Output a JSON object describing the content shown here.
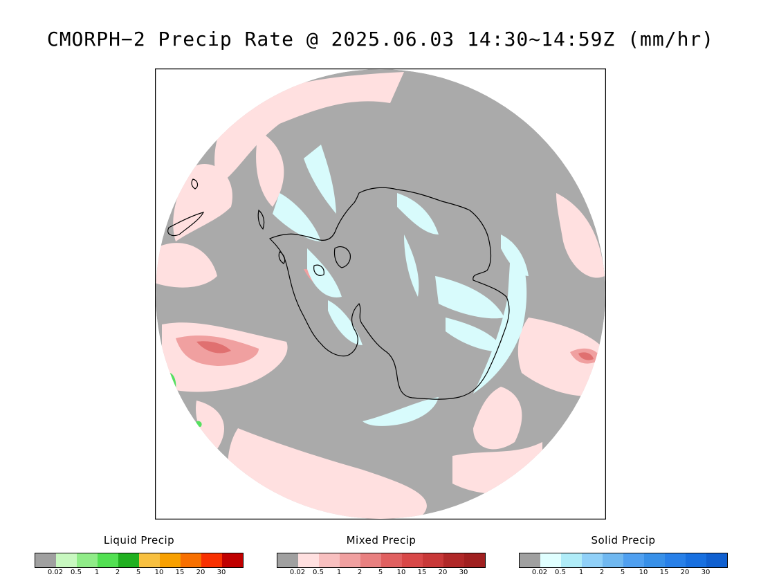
{
  "title": "CMORPH−2 Precip Rate @ 2025.06.03 14:30~14:59Z (mm/hr)",
  "map": {
    "projection": "south-polar-stereographic",
    "colors": {
      "background": "#aaaaaa",
      "mixed_light": "#ffe0e0",
      "mixed_mid": "#f0a0a0",
      "mixed_dark": "#e07070",
      "solid_light": "#d8fbfc",
      "liquid_green": "#55e060",
      "coastline": "#000000"
    }
  },
  "legends": [
    {
      "title": "Liquid Precip",
      "ticks": [
        "0.02",
        "0.5",
        "1",
        "2",
        "5",
        "10",
        "15",
        "20",
        "30"
      ],
      "colors": [
        "#a0a0a0",
        "#c8f8c0",
        "#90ec88",
        "#52e052",
        "#20b020",
        "#f8c040",
        "#f8a000",
        "#f87000",
        "#f83000",
        "#c00000"
      ]
    },
    {
      "title": "Mixed Precip",
      "ticks": [
        "0.02",
        "0.5",
        "1",
        "2",
        "5",
        "10",
        "15",
        "20",
        "30"
      ],
      "colors": [
        "#a0a0a0",
        "#ffe0e0",
        "#f8c0c0",
        "#f0a0a0",
        "#e88080",
        "#e06060",
        "#d84848",
        "#c83838",
        "#b02828",
        "#a02020"
      ]
    },
    {
      "title": "Solid Precip",
      "ticks": [
        "0.02",
        "0.5",
        "1",
        "2",
        "5",
        "10",
        "15",
        "20",
        "30"
      ],
      "colors": [
        "#a0a0a0",
        "#e0ffff",
        "#b0ecf8",
        "#90d0f8",
        "#70b8f0",
        "#50a0f0",
        "#3890e8",
        "#2880e8",
        "#1870e0",
        "#1060d0"
      ]
    }
  ]
}
